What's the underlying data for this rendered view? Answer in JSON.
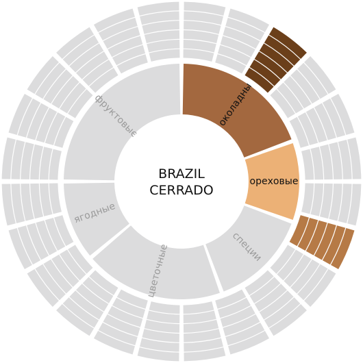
{
  "center": {
    "line1": "BRAZIL",
    "line2": "CERRADO"
  },
  "palette": {
    "inactive": "#dcdcdd",
    "inactive_text": "#9a9a9a",
    "active_text": "#111111",
    "gap": "#ffffff"
  },
  "inner_ring": [
    {
      "label": "шоколадные",
      "span": 70,
      "active": true,
      "color": "#a3683f"
    },
    {
      "label": "ореховые",
      "span": 40,
      "active": true,
      "color": "#ecb176"
    },
    {
      "label": "специи",
      "span": 50,
      "active": false,
      "color": "#dcdcdd"
    },
    {
      "label": "цветочные",
      "span": 70,
      "active": false,
      "color": "#dcdcdd"
    },
    {
      "label": "ягодные",
      "span": 40,
      "active": false,
      "color": "#dcdcdd"
    },
    {
      "label": "фруктовые",
      "span": 90,
      "active": false,
      "color": "#dcdcdd"
    }
  ],
  "outer_ring": {
    "sectors": 24,
    "bands": 6,
    "highlights": [
      {
        "sector": 2,
        "color": "#6b3f1a"
      },
      {
        "sector": 7,
        "color": "#b67a46"
      }
    ]
  }
}
